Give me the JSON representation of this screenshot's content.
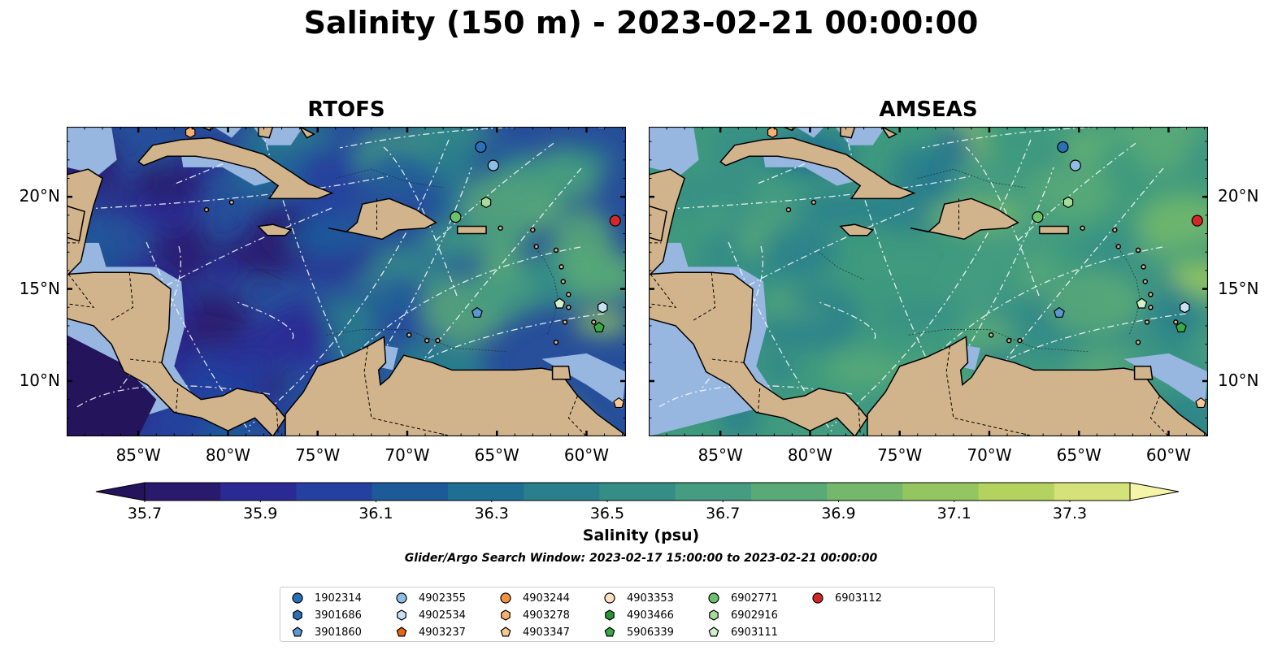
{
  "title": "Salinity (150 m) - 2023-02-21 00:00:00",
  "panels": [
    {
      "title": "RTOFS",
      "ocean_base": "#274f9a"
    },
    {
      "title": "AMSEAS",
      "ocean_base": "#3f9a7e"
    }
  ],
  "lon_labels": [
    "85°W",
    "80°W",
    "75°W",
    "70°W",
    "65°W",
    "60°W"
  ],
  "lat_labels": [
    "20°N",
    "15°N",
    "10°N"
  ],
  "colorbar": {
    "label": "Salinity (psu)",
    "ticks": [
      "35.7",
      "35.9",
      "36.1",
      "36.3",
      "36.5",
      "36.7",
      "36.9",
      "37.1",
      "37.3"
    ],
    "colors": [
      "#2a1a6e",
      "#2b2a94",
      "#25409e",
      "#1d5a9a",
      "#1f6e93",
      "#297f8c",
      "#358e86",
      "#459c80",
      "#5aaa77",
      "#74b86b",
      "#93c660",
      "#b3d35e",
      "#d5e27a"
    ],
    "under_color": "#23145c",
    "over_color": "#f4f5a8"
  },
  "land_color": "#d2b48c",
  "shelf_color": "#97b6e0",
  "search_window": "Glider/Argo Search Window: 2023-02-17 15:00:00 to 2023-02-21 00:00:00",
  "legend": [
    {
      "label": "1902314",
      "color": "#2970b8",
      "marker": "circle"
    },
    {
      "label": "3901686",
      "color": "#2970b8",
      "marker": "hexagon"
    },
    {
      "label": "3901860",
      "color": "#5d97d1",
      "marker": "pentagon"
    },
    {
      "label": "4902355",
      "color": "#8fbde6",
      "marker": "circle"
    },
    {
      "label": "4902534",
      "color": "#c7e0f4",
      "marker": "hexagon"
    },
    {
      "label": "4903237",
      "color": "#e6660f",
      "marker": "pentagon"
    },
    {
      "label": "4903244",
      "color": "#f59142",
      "marker": "circle"
    },
    {
      "label": "4903278",
      "color": "#f9b06e",
      "marker": "hexagon"
    },
    {
      "label": "4903347",
      "color": "#fbc894",
      "marker": "pentagon"
    },
    {
      "label": "4903353",
      "color": "#fde0c2",
      "marker": "circle"
    },
    {
      "label": "4903466",
      "color": "#2a9334",
      "marker": "hexagon"
    },
    {
      "label": "5906339",
      "color": "#3aa845",
      "marker": "pentagon"
    },
    {
      "label": "6902771",
      "color": "#6cc26a",
      "marker": "circle"
    },
    {
      "label": "6902916",
      "color": "#a6dc9a",
      "marker": "hexagon"
    },
    {
      "label": "6903111",
      "color": "#d3f0cb",
      "marker": "pentagon"
    },
    {
      "label": "6903112",
      "color": "#d62728",
      "marker": "circle"
    }
  ],
  "markers_on_map": [
    {
      "id": "4903278",
      "lon": -82.1,
      "lat": 23.5
    },
    {
      "id": "1902314",
      "lon": -65.9,
      "lat": 22.7
    },
    {
      "id": "4902355",
      "lon": -65.2,
      "lat": 21.7
    },
    {
      "id": "6902916",
      "lon": -65.6,
      "lat": 19.7
    },
    {
      "id": "6902771",
      "lon": -67.3,
      "lat": 18.9
    },
    {
      "id": "6903112",
      "lon": -58.4,
      "lat": 18.7
    },
    {
      "id": "6903111",
      "lon": -61.5,
      "lat": 14.2
    },
    {
      "id": "3901860",
      "lon": -66.1,
      "lat": 13.7
    },
    {
      "id": "4902534",
      "lon": -59.1,
      "lat": 14.0
    },
    {
      "id": "5906339",
      "lon": -59.3,
      "lat": 12.9
    },
    {
      "id": "4903347",
      "lon": -58.2,
      "lat": 8.8
    }
  ]
}
